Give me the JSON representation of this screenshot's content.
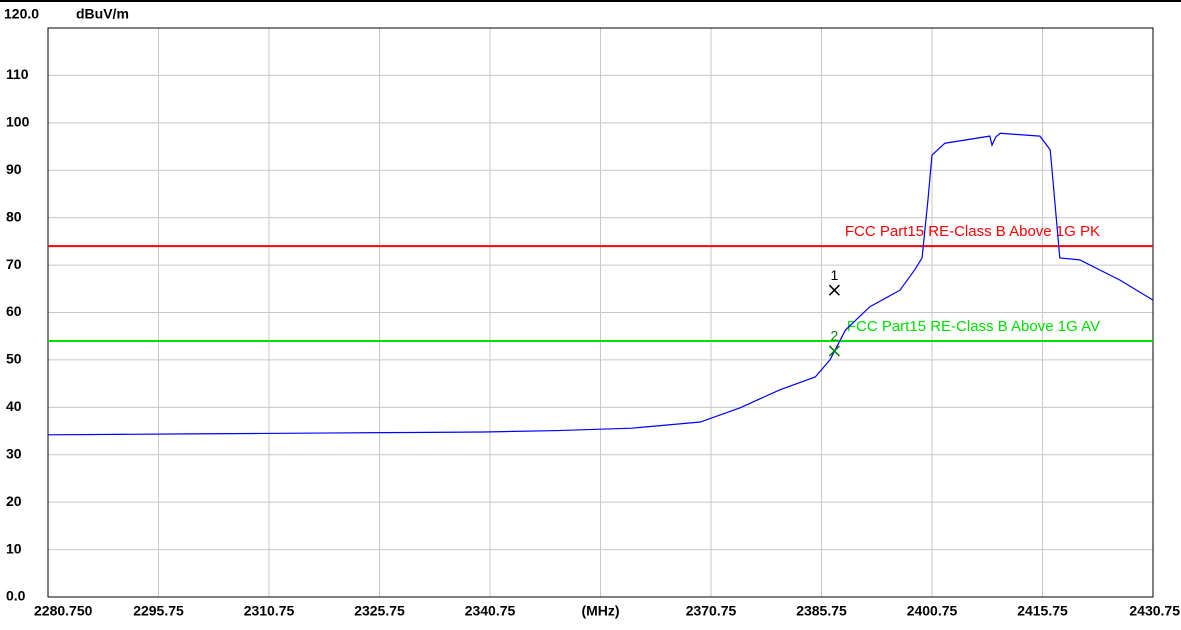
{
  "chart_data": {
    "type": "line",
    "y_label": "dBuV/m",
    "xlim": [
      2280.75,
      2430.75
    ],
    "ylim": [
      0,
      120
    ],
    "xticks": [
      {
        "value": 2280.75,
        "label": "2280.750"
      },
      2295.75,
      2310.75,
      2325.75,
      2340.75,
      {
        "value": 2355.75,
        "label": "(MHz)"
      },
      2370.75,
      2385.75,
      2400.75,
      2415.75,
      2430.75
    ],
    "yticks": [
      {
        "value": 0,
        "label": "0.0"
      },
      10,
      20,
      30,
      40,
      50,
      60,
      70,
      80,
      90,
      100,
      110,
      {
        "value": 120,
        "label": "120.0"
      }
    ],
    "grid": true,
    "series": [
      {
        "color": "#0000ff",
        "x": [
          2280.75,
          2290,
          2300,
          2310,
          2320,
          2330,
          2340,
          2350,
          2360,
          2365,
          2369.3,
          2374.7,
          2380.1,
          2384.9,
          2386.9,
          2389,
          2392.3,
          2396.4,
          2398.4,
          2399.4,
          2400.2,
          2400.75,
          2402.5,
          2408.6,
          2408.9,
          2409.4,
          2410,
          2415.4,
          2416.8,
          2418.1,
          2420.8,
          2426.3,
          2430.75
        ],
        "values": [
          34.2,
          34.3,
          34.4,
          34.5,
          34.6,
          34.7,
          34.8,
          35.1,
          35.6,
          36.3,
          36.9,
          39.9,
          43.7,
          46.4,
          50,
          56.3,
          61.2,
          64.7,
          69,
          71.5,
          83.7,
          93.2,
          95.7,
          97.2,
          95.3,
          97,
          97.8,
          97.2,
          94.3,
          71.5,
          71.1,
          66.8,
          62.6
        ]
      }
    ],
    "limit_lines": [
      {
        "name": "FCC Part15 RE-Class B Above 1G PK",
        "value": 74,
        "color": "#ff0000"
      },
      {
        "name": "FCC Part15 RE-Class B Above 1G AV",
        "value": 54,
        "color": "#00e000"
      }
    ],
    "markers": [
      {
        "label": "1",
        "x": 2387.5,
        "value": 64.7,
        "color": "#000000"
      },
      {
        "label": "2",
        "x": 2387.5,
        "value": 51.9,
        "color": "#008000"
      }
    ]
  }
}
